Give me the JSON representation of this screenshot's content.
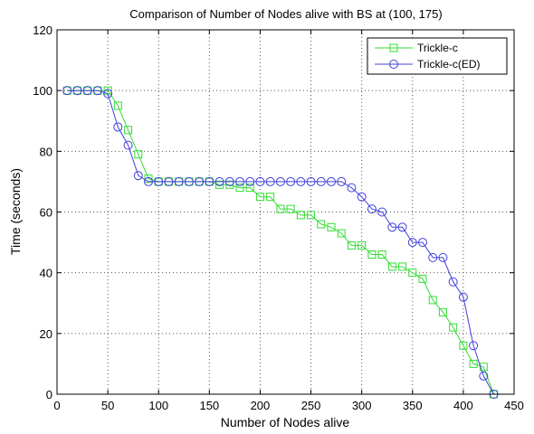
{
  "chart_data": {
    "type": "line",
    "title": "Comparison of Number of Nodes alive with BS at (100, 175)",
    "xlabel": "Number of Nodes alive",
    "ylabel": "Time (seconds)",
    "xlim": [
      0,
      450
    ],
    "ylim": [
      0,
      120
    ],
    "xticks": [
      0,
      50,
      100,
      150,
      200,
      250,
      300,
      350,
      400,
      450
    ],
    "yticks": [
      0,
      20,
      40,
      60,
      80,
      100,
      120
    ],
    "grid": true,
    "legend_position": "top-right",
    "series": [
      {
        "name": "Trickle-c",
        "color": "#33dd33",
        "marker": "square",
        "x": [
          10,
          20,
          30,
          40,
          50,
          60,
          70,
          80,
          90,
          100,
          110,
          120,
          130,
          140,
          150,
          160,
          170,
          180,
          190,
          200,
          210,
          220,
          230,
          240,
          250,
          260,
          270,
          280,
          290,
          300,
          310,
          320,
          330,
          340,
          350,
          360,
          370,
          380,
          390,
          400,
          410,
          420,
          430
        ],
        "y": [
          100,
          100,
          100,
          100,
          100,
          95,
          87,
          79,
          71,
          70,
          70,
          70,
          70,
          70,
          70,
          69,
          69,
          68,
          68,
          65,
          65,
          61,
          61,
          59,
          59,
          56,
          55,
          53,
          49,
          49,
          46,
          46,
          42,
          42,
          40,
          38,
          31,
          27,
          22,
          16,
          10,
          9,
          0
        ]
      },
      {
        "name": "Trickle-c(ED)",
        "color": "#4040dd",
        "marker": "circle",
        "x": [
          10,
          20,
          30,
          40,
          50,
          60,
          70,
          80,
          90,
          100,
          110,
          120,
          130,
          140,
          150,
          160,
          170,
          180,
          190,
          200,
          210,
          220,
          230,
          240,
          250,
          260,
          270,
          280,
          290,
          300,
          310,
          320,
          330,
          340,
          350,
          360,
          370,
          380,
          390,
          400,
          410,
          420,
          430
        ],
        "y": [
          100,
          100,
          100,
          100,
          99,
          88,
          82,
          72,
          70,
          70,
          70,
          70,
          70,
          70,
          70,
          70,
          70,
          70,
          70,
          70,
          70,
          70,
          70,
          70,
          70,
          70,
          70,
          70,
          68,
          65,
          61,
          60,
          55,
          55,
          50,
          50,
          45,
          45,
          37,
          32,
          16,
          6,
          0
        ]
      }
    ]
  }
}
